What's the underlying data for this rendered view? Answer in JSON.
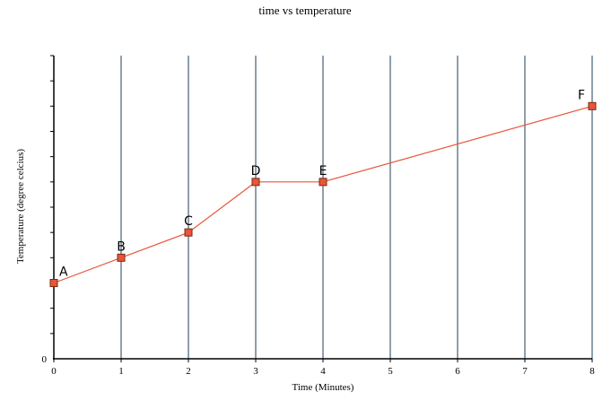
{
  "chart_data": {
    "type": "line",
    "title": "time vs temperature",
    "xlabel": "Time (Minutes)",
    "ylabel": "Temperature (degree celcius)",
    "x_ticks": [
      0,
      1,
      2,
      3,
      4,
      5,
      6,
      7,
      8
    ],
    "y_tick_labels": [
      "0"
    ],
    "xlim": [
      0,
      8
    ],
    "ylim": [
      0,
      6
    ],
    "vertical_grid": true,
    "horizontal_grid": false,
    "colors": {
      "line": "#e8553a",
      "marker_fill": "#e8553a",
      "marker_stroke": "#7a2a10",
      "grid": "#1f3f5a",
      "axis": "#000000"
    },
    "points": [
      {
        "label": "A",
        "x": 0,
        "y": 1.5
      },
      {
        "label": "B",
        "x": 1,
        "y": 2.0
      },
      {
        "label": "C",
        "x": 2,
        "y": 2.5
      },
      {
        "label": "D",
        "x": 3,
        "y": 3.5
      },
      {
        "label": "E",
        "x": 4,
        "y": 3.5
      },
      {
        "label": "F",
        "x": 8,
        "y": 5.0
      }
    ]
  }
}
